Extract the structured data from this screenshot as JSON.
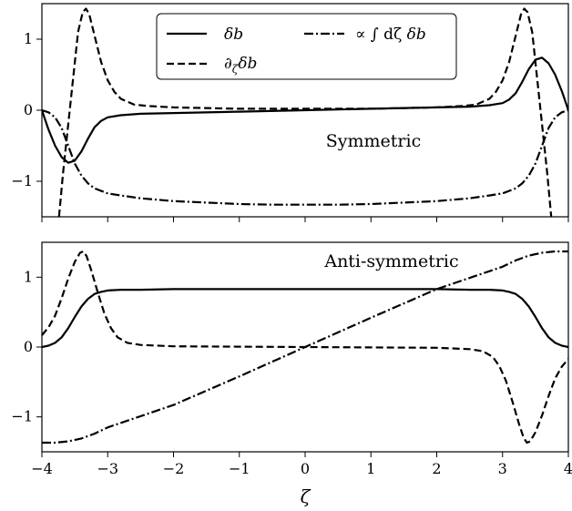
{
  "chart_data": [
    {
      "type": "line",
      "annotation": "Symmetric",
      "xlim": [
        -4,
        4
      ],
      "ylim": [
        -1.5,
        1.5
      ],
      "xticks": [
        -4,
        -3,
        -2,
        -1,
        0,
        1,
        2,
        3,
        4
      ],
      "yticks": [
        -1,
        0,
        1
      ],
      "ytick_labels": [
        "−1",
        "0",
        "1"
      ],
      "legend": {
        "placement": "top-center",
        "entries": [
          {
            "series": "db",
            "prefix": "",
            "main": "δb",
            "sub": "",
            "tail": ""
          },
          {
            "series": "dzdb",
            "prefix": "",
            "main": "∂",
            "sub": "ζ",
            "tail": "δb"
          },
          {
            "series": "intdb",
            "prefix": "∝ ∫ dζ ",
            "main": "δb",
            "sub": "",
            "tail": ""
          }
        ]
      },
      "series": [
        {
          "key": "db",
          "style": "solid",
          "points": [
            [
              -4.0,
              0.0
            ],
            [
              -3.9,
              -0.27
            ],
            [
              -3.8,
              -0.5
            ],
            [
              -3.7,
              -0.66
            ],
            [
              -3.6,
              -0.74
            ],
            [
              -3.5,
              -0.71
            ],
            [
              -3.4,
              -0.58
            ],
            [
              -3.3,
              -0.4
            ],
            [
              -3.2,
              -0.24
            ],
            [
              -3.1,
              -0.15
            ],
            [
              -3.0,
              -0.1
            ],
            [
              -2.8,
              -0.07
            ],
            [
              -2.5,
              -0.05
            ],
            [
              -2.0,
              -0.04
            ],
            [
              -1.0,
              -0.02
            ],
            [
              0.0,
              0.0
            ],
            [
              1.0,
              0.02
            ],
            [
              2.0,
              0.04
            ],
            [
              2.5,
              0.05
            ],
            [
              2.8,
              0.07
            ],
            [
              3.0,
              0.1
            ],
            [
              3.1,
              0.15
            ],
            [
              3.2,
              0.24
            ],
            [
              3.3,
              0.4
            ],
            [
              3.4,
              0.58
            ],
            [
              3.5,
              0.71
            ],
            [
              3.6,
              0.74
            ],
            [
              3.7,
              0.66
            ],
            [
              3.8,
              0.5
            ],
            [
              3.9,
              0.27
            ],
            [
              4.0,
              0.0
            ]
          ]
        },
        {
          "key": "dzdb",
          "style": "dashed",
          "points": [
            [
              -3.74,
              -1.5
            ],
            [
              -3.68,
              -0.9
            ],
            [
              -3.6,
              -0.2
            ],
            [
              -3.52,
              0.5
            ],
            [
              -3.45,
              1.1
            ],
            [
              -3.38,
              1.38
            ],
            [
              -3.33,
              1.43
            ],
            [
              -3.28,
              1.35
            ],
            [
              -3.2,
              1.05
            ],
            [
              -3.1,
              0.68
            ],
            [
              -3.0,
              0.42
            ],
            [
              -2.9,
              0.26
            ],
            [
              -2.8,
              0.16
            ],
            [
              -2.6,
              0.08
            ],
            [
              -2.4,
              0.06
            ],
            [
              -2.0,
              0.04
            ],
            [
              -1.0,
              0.02
            ],
            [
              0.0,
              0.02
            ],
            [
              1.0,
              0.02
            ],
            [
              2.0,
              0.04
            ],
            [
              2.4,
              0.06
            ],
            [
              2.6,
              0.08
            ],
            [
              2.8,
              0.16
            ],
            [
              2.9,
              0.26
            ],
            [
              3.0,
              0.42
            ],
            [
              3.1,
              0.68
            ],
            [
              3.2,
              1.05
            ],
            [
              3.28,
              1.35
            ],
            [
              3.33,
              1.43
            ],
            [
              3.38,
              1.38
            ],
            [
              3.45,
              1.1
            ],
            [
              3.52,
              0.5
            ],
            [
              3.6,
              -0.2
            ],
            [
              3.68,
              -0.9
            ],
            [
              3.74,
              -1.5
            ]
          ]
        },
        {
          "key": "intdb",
          "style": "dashdot",
          "points": [
            [
              -4.0,
              0.0
            ],
            [
              -3.9,
              -0.03
            ],
            [
              -3.8,
              -0.1
            ],
            [
              -3.7,
              -0.25
            ],
            [
              -3.6,
              -0.5
            ],
            [
              -3.5,
              -0.75
            ],
            [
              -3.4,
              -0.92
            ],
            [
              -3.3,
              -1.03
            ],
            [
              -3.2,
              -1.1
            ],
            [
              -3.0,
              -1.17
            ],
            [
              -2.8,
              -1.2
            ],
            [
              -2.5,
              -1.24
            ],
            [
              -2.0,
              -1.28
            ],
            [
              -1.5,
              -1.3
            ],
            [
              -1.0,
              -1.32
            ],
            [
              -0.5,
              -1.33
            ],
            [
              0.0,
              -1.33
            ],
            [
              0.5,
              -1.33
            ],
            [
              1.0,
              -1.32
            ],
            [
              1.5,
              -1.3
            ],
            [
              2.0,
              -1.28
            ],
            [
              2.5,
              -1.24
            ],
            [
              2.8,
              -1.2
            ],
            [
              3.0,
              -1.17
            ],
            [
              3.2,
              -1.1
            ],
            [
              3.3,
              -1.03
            ],
            [
              3.4,
              -0.92
            ],
            [
              3.5,
              -0.75
            ],
            [
              3.6,
              -0.5
            ],
            [
              3.7,
              -0.25
            ],
            [
              3.8,
              -0.1
            ],
            [
              3.9,
              -0.03
            ],
            [
              4.0,
              0.0
            ]
          ]
        }
      ]
    },
    {
      "type": "line",
      "annotation": "Anti-symmetric",
      "xlim": [
        -4,
        4
      ],
      "ylim": [
        -1.5,
        1.5
      ],
      "xticks": [
        -4,
        -3,
        -2,
        -1,
        0,
        1,
        2,
        3,
        4
      ],
      "xtick_labels": [
        "−4",
        "−3",
        "−2",
        "−1",
        "0",
        "1",
        "2",
        "3",
        "4"
      ],
      "yticks": [
        -1,
        0,
        1
      ],
      "ytick_labels": [
        "−1",
        "0",
        "1"
      ],
      "xlabel": "ζ",
      "series": [
        {
          "key": "db",
          "style": "solid",
          "points": [
            [
              -4.0,
              0.0
            ],
            [
              -3.9,
              0.02
            ],
            [
              -3.8,
              0.06
            ],
            [
              -3.7,
              0.14
            ],
            [
              -3.6,
              0.27
            ],
            [
              -3.5,
              0.43
            ],
            [
              -3.4,
              0.58
            ],
            [
              -3.3,
              0.69
            ],
            [
              -3.2,
              0.76
            ],
            [
              -3.1,
              0.79
            ],
            [
              -3.0,
              0.81
            ],
            [
              -2.8,
              0.82
            ],
            [
              -2.5,
              0.82
            ],
            [
              -2.0,
              0.83
            ],
            [
              0.0,
              0.83
            ],
            [
              2.0,
              0.83
            ],
            [
              2.5,
              0.82
            ],
            [
              2.8,
              0.82
            ],
            [
              3.0,
              0.81
            ],
            [
              3.1,
              0.79
            ],
            [
              3.2,
              0.76
            ],
            [
              3.3,
              0.69
            ],
            [
              3.4,
              0.58
            ],
            [
              3.5,
              0.43
            ],
            [
              3.6,
              0.27
            ],
            [
              3.7,
              0.14
            ],
            [
              3.8,
              0.06
            ],
            [
              3.9,
              0.02
            ],
            [
              4.0,
              0.0
            ]
          ]
        },
        {
          "key": "dzdb",
          "style": "dashed",
          "points": [
            [
              -4.0,
              0.17
            ],
            [
              -3.9,
              0.28
            ],
            [
              -3.8,
              0.45
            ],
            [
              -3.7,
              0.7
            ],
            [
              -3.6,
              0.98
            ],
            [
              -3.5,
              1.22
            ],
            [
              -3.42,
              1.35
            ],
            [
              -3.37,
              1.37
            ],
            [
              -3.32,
              1.3
            ],
            [
              -3.25,
              1.1
            ],
            [
              -3.15,
              0.78
            ],
            [
              -3.05,
              0.48
            ],
            [
              -2.95,
              0.27
            ],
            [
              -2.85,
              0.14
            ],
            [
              -2.7,
              0.06
            ],
            [
              -2.5,
              0.03
            ],
            [
              -2.0,
              0.01
            ],
            [
              0.0,
              0.0
            ],
            [
              2.0,
              -0.01
            ],
            [
              2.5,
              -0.03
            ],
            [
              2.7,
              -0.06
            ],
            [
              2.85,
              -0.14
            ],
            [
              2.95,
              -0.27
            ],
            [
              3.05,
              -0.48
            ],
            [
              3.15,
              -0.78
            ],
            [
              3.25,
              -1.1
            ],
            [
              3.32,
              -1.3
            ],
            [
              3.37,
              -1.37
            ],
            [
              3.42,
              -1.35
            ],
            [
              3.5,
              -1.22
            ],
            [
              3.6,
              -0.98
            ],
            [
              3.7,
              -0.7
            ],
            [
              3.8,
              -0.45
            ],
            [
              3.9,
              -0.28
            ],
            [
              4.0,
              -0.17
            ]
          ]
        },
        {
          "key": "intdb",
          "style": "dashdot",
          "points": [
            [
              -4.0,
              -1.37
            ],
            [
              -3.8,
              -1.37
            ],
            [
              -3.6,
              -1.35
            ],
            [
              -3.4,
              -1.31
            ],
            [
              -3.2,
              -1.24
            ],
            [
              -3.0,
              -1.15
            ],
            [
              -2.0,
              -0.83
            ],
            [
              -1.0,
              -0.42
            ],
            [
              0.0,
              0.0
            ],
            [
              1.0,
              0.42
            ],
            [
              2.0,
              0.83
            ],
            [
              3.0,
              1.15
            ],
            [
              3.2,
              1.24
            ],
            [
              3.4,
              1.31
            ],
            [
              3.6,
              1.35
            ],
            [
              3.8,
              1.37
            ],
            [
              4.0,
              1.37
            ]
          ]
        }
      ]
    }
  ]
}
